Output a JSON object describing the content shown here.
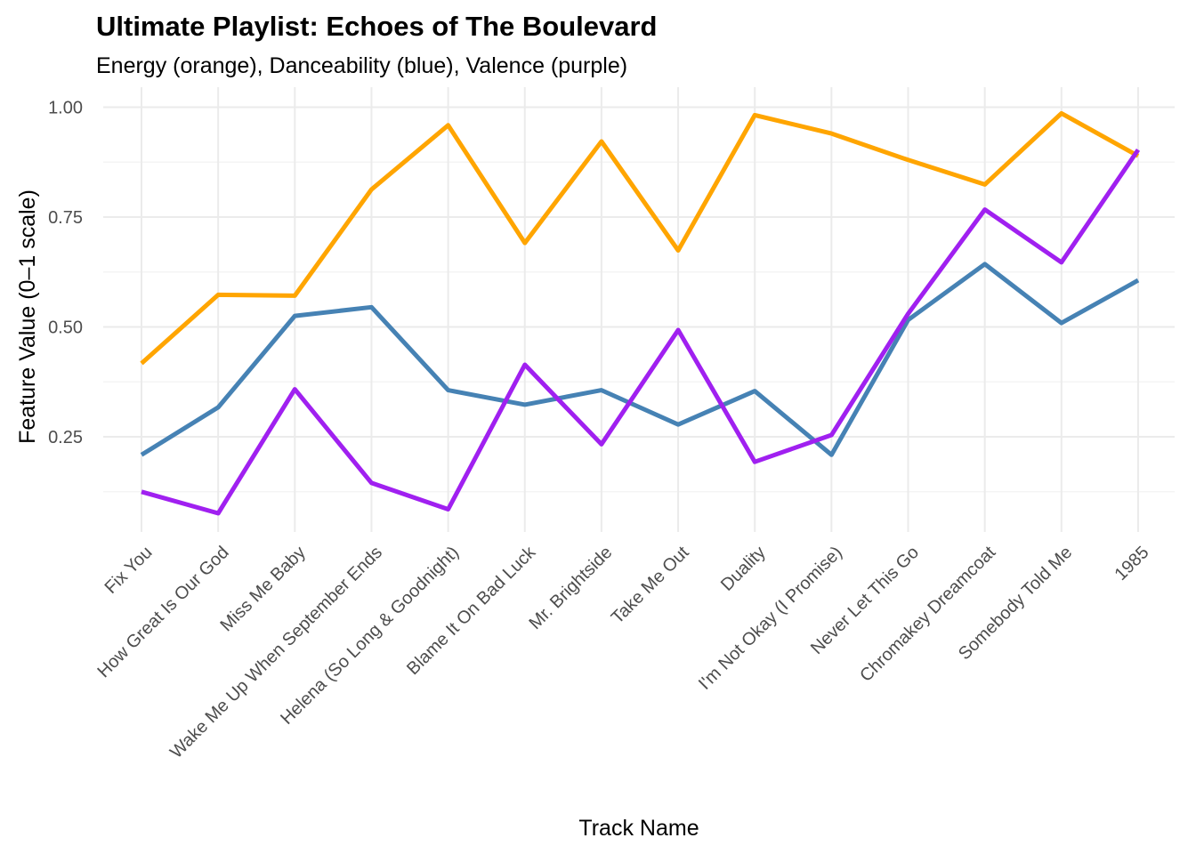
{
  "chart_data": {
    "type": "line",
    "title": "Ultimate Playlist: Echoes of The Boulevard",
    "subtitle": "Energy (orange), Danceability (blue), Valence (purple)",
    "xlabel": "Track Name",
    "ylabel": "Feature Value (0–1 scale)",
    "categories": [
      "Fix You",
      "How Great Is Our God",
      "Miss Me Baby",
      "Wake Me Up When September Ends",
      "Helena (So Long & Goodnight)",
      "Blame It On Bad Luck",
      "Mr. Brightside",
      "Take Me Out",
      "Duality",
      "I'm Not Okay (I Promise)",
      "Never Let This Go",
      "Chromakey Dreamcoat",
      "Somebody Told Me",
      "1985"
    ],
    "series": [
      {
        "key": "energy",
        "color": "#FFA500",
        "values": [
          0.417,
          0.573,
          0.571,
          0.813,
          0.959,
          0.691,
          0.922,
          0.674,
          0.982,
          0.94,
          0.88,
          0.824,
          0.986,
          0.889
        ]
      },
      {
        "key": "danceability",
        "color": "#4682B4",
        "values": [
          0.209,
          0.317,
          0.525,
          0.545,
          0.356,
          0.323,
          0.356,
          0.278,
          0.354,
          0.209,
          0.516,
          0.643,
          0.509,
          0.606
        ]
      },
      {
        "key": "valence",
        "color": "#A020F0",
        "values": [
          0.125,
          0.076,
          0.358,
          0.145,
          0.085,
          0.414,
          0.233,
          0.493,
          0.193,
          0.254,
          0.53,
          0.767,
          0.647,
          0.903
        ]
      }
    ],
    "y_ticks": [
      "0.25",
      "0.50",
      "0.75",
      "1.00"
    ],
    "ylim": [
      0.04,
      1.05
    ],
    "grid": true,
    "legend": "none"
  }
}
